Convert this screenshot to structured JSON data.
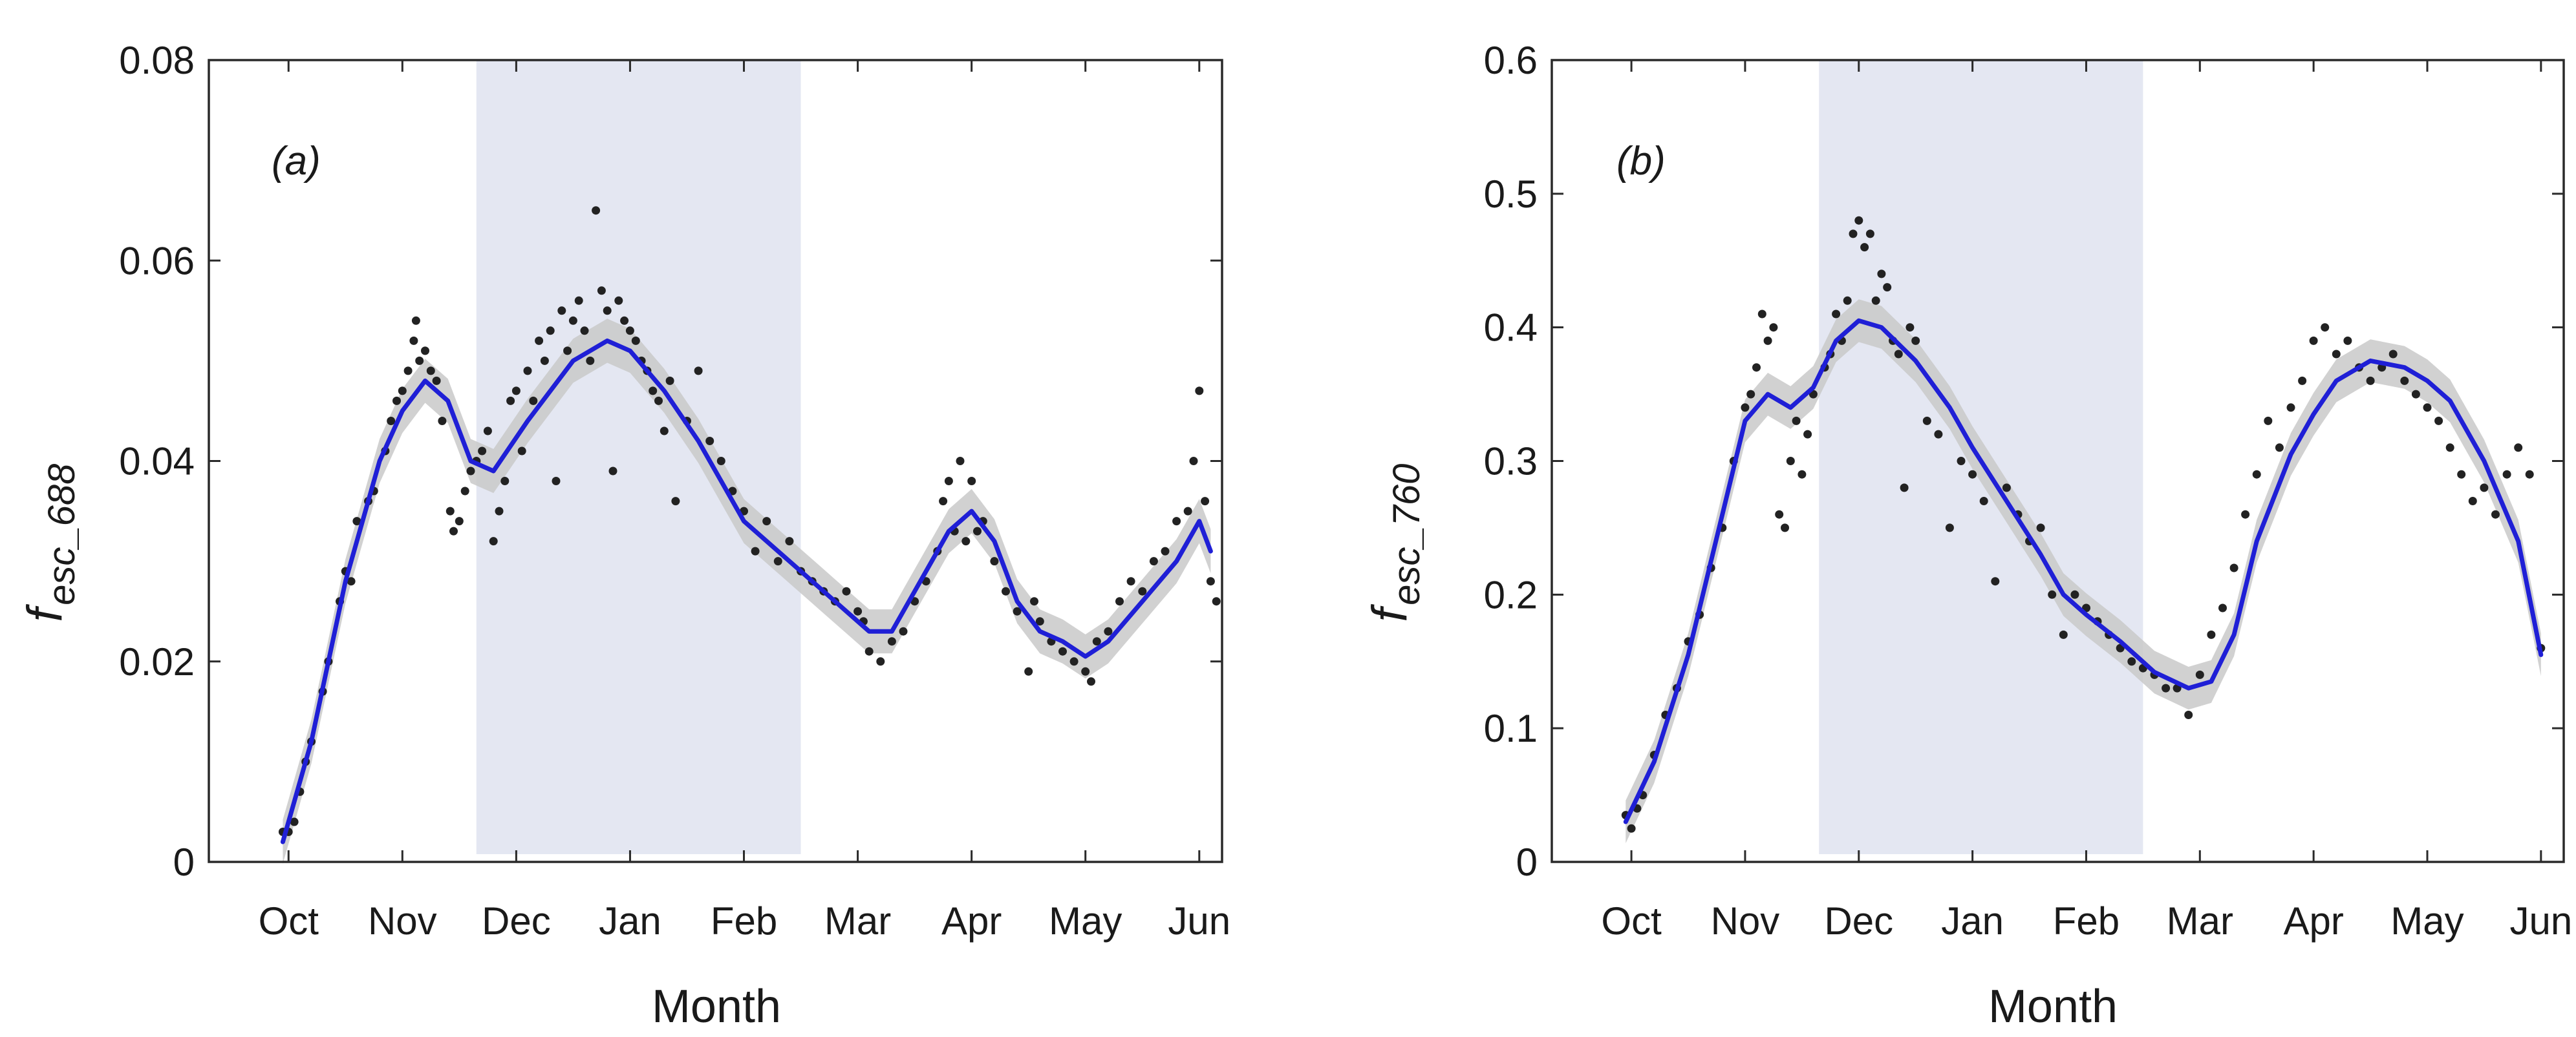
{
  "chart_data": [
    {
      "type": "scatter",
      "panel_label": "(a)",
      "ylabel_main": "f",
      "ylabel_sub": "esc_688",
      "xlabel": "Month",
      "ylim": [
        0,
        0.08
      ],
      "yticks": [
        0,
        0.02,
        0.04,
        0.06,
        0.08
      ],
      "ytick_labels": [
        "0",
        "0.02",
        "0.04",
        "0.06",
        "0.08"
      ],
      "xlim": [
        -0.7,
        8.2
      ],
      "xticks": [
        0,
        1,
        2,
        3,
        4,
        5,
        6,
        7,
        8
      ],
      "xtick_labels": [
        "Oct",
        "Nov",
        "Dec",
        "Jan",
        "Feb",
        "Mar",
        "Apr",
        "May",
        "Jun"
      ],
      "shaded_range": [
        1.65,
        4.5
      ],
      "fit_line": {
        "color": "#1f1fd6",
        "x": [
          -0.05,
          0.2,
          0.5,
          0.8,
          1.0,
          1.2,
          1.4,
          1.6,
          1.8,
          2.1,
          2.5,
          2.8,
          3.0,
          3.3,
          3.6,
          3.8,
          4.0,
          4.3,
          4.6,
          4.9,
          5.1,
          5.3,
          5.5,
          5.8,
          6.0,
          6.2,
          6.4,
          6.6,
          6.8,
          7.0,
          7.2,
          7.5,
          7.8,
          8.0,
          8.1
        ],
        "y": [
          0.002,
          0.012,
          0.028,
          0.04,
          0.045,
          0.048,
          0.046,
          0.04,
          0.039,
          0.044,
          0.05,
          0.052,
          0.051,
          0.047,
          0.042,
          0.038,
          0.034,
          0.031,
          0.028,
          0.025,
          0.023,
          0.023,
          0.027,
          0.033,
          0.035,
          0.032,
          0.026,
          0.023,
          0.022,
          0.0205,
          0.022,
          0.026,
          0.03,
          0.034,
          0.031
        ]
      },
      "band_halfwidth": 0.0022,
      "scatter": {
        "x": [
          -0.05,
          0.0,
          0.05,
          0.1,
          0.15,
          0.2,
          0.3,
          0.35,
          0.45,
          0.5,
          0.55,
          0.6,
          0.7,
          0.75,
          0.85,
          0.9,
          0.95,
          1.0,
          1.05,
          1.1,
          1.12,
          1.15,
          1.2,
          1.25,
          1.3,
          1.35,
          1.42,
          1.45,
          1.5,
          1.55,
          1.6,
          1.65,
          1.7,
          1.75,
          1.8,
          1.85,
          1.9,
          1.95,
          2.0,
          2.05,
          2.1,
          2.15,
          2.2,
          2.25,
          2.3,
          2.35,
          2.4,
          2.45,
          2.5,
          2.55,
          2.6,
          2.65,
          2.7,
          2.75,
          2.8,
          2.85,
          2.9,
          2.95,
          3.0,
          3.05,
          3.1,
          3.15,
          3.2,
          3.25,
          3.3,
          3.35,
          3.4,
          3.5,
          3.6,
          3.7,
          3.8,
          3.9,
          4.0,
          4.1,
          4.2,
          4.3,
          4.4,
          4.5,
          4.6,
          4.7,
          4.8,
          4.9,
          5.0,
          5.05,
          5.1,
          5.2,
          5.3,
          5.4,
          5.5,
          5.6,
          5.7,
          5.75,
          5.8,
          5.85,
          5.9,
          5.95,
          6.0,
          6.05,
          6.1,
          6.2,
          6.3,
          6.4,
          6.5,
          6.55,
          6.6,
          6.7,
          6.8,
          6.9,
          7.0,
          7.05,
          7.1,
          7.2,
          7.3,
          7.4,
          7.5,
          7.6,
          7.7,
          7.8,
          7.9,
          7.95,
          8.0,
          8.05,
          8.1,
          8.15
        ],
        "y": [
          0.003,
          0.003,
          0.004,
          0.007,
          0.01,
          0.012,
          0.017,
          0.02,
          0.026,
          0.029,
          0.028,
          0.034,
          0.036,
          0.037,
          0.041,
          0.044,
          0.046,
          0.047,
          0.049,
          0.052,
          0.054,
          0.05,
          0.051,
          0.049,
          0.048,
          0.044,
          0.035,
          0.033,
          0.034,
          0.037,
          0.039,
          0.04,
          0.041,
          0.043,
          0.032,
          0.035,
          0.038,
          0.046,
          0.047,
          0.041,
          0.049,
          0.046,
          0.052,
          0.05,
          0.053,
          0.038,
          0.055,
          0.051,
          0.054,
          0.056,
          0.053,
          0.05,
          0.065,
          0.057,
          0.055,
          0.039,
          0.056,
          0.054,
          0.053,
          0.052,
          0.05,
          0.049,
          0.047,
          0.046,
          0.043,
          0.048,
          0.036,
          0.044,
          0.049,
          0.042,
          0.04,
          0.037,
          0.035,
          0.031,
          0.034,
          0.03,
          0.032,
          0.029,
          0.028,
          0.027,
          0.026,
          0.027,
          0.025,
          0.024,
          0.021,
          0.02,
          0.022,
          0.023,
          0.026,
          0.028,
          0.031,
          0.036,
          0.038,
          0.033,
          0.04,
          0.032,
          0.038,
          0.033,
          0.034,
          0.03,
          0.027,
          0.025,
          0.019,
          0.026,
          0.024,
          0.022,
          0.021,
          0.02,
          0.019,
          0.018,
          0.022,
          0.023,
          0.026,
          0.028,
          0.027,
          0.03,
          0.031,
          0.034,
          0.035,
          0.04,
          0.047,
          0.036,
          0.028,
          0.026
        ]
      }
    },
    {
      "type": "scatter",
      "panel_label": "(b)",
      "ylabel_main": "f",
      "ylabel_sub": "esc_760",
      "xlabel": "Month",
      "ylim": [
        0,
        0.6
      ],
      "yticks": [
        0,
        0.1,
        0.2,
        0.3,
        0.4,
        0.5,
        0.6
      ],
      "ytick_labels": [
        "0",
        "0.1",
        "0.2",
        "0.3",
        "0.4",
        "0.5",
        "0.6"
      ],
      "xlim": [
        -0.7,
        8.2
      ],
      "xticks": [
        0,
        1,
        2,
        3,
        4,
        5,
        6,
        7,
        8
      ],
      "xtick_labels": [
        "Oct",
        "Nov",
        "Dec",
        "Jan",
        "Feb",
        "Mar",
        "Apr",
        "May",
        "Jun"
      ],
      "shaded_range": [
        1.65,
        4.5
      ],
      "fit_line": {
        "color": "#1f1fd6",
        "x": [
          -0.05,
          0.2,
          0.5,
          0.8,
          1.0,
          1.2,
          1.4,
          1.6,
          1.8,
          2.0,
          2.2,
          2.5,
          2.8,
          3.0,
          3.3,
          3.6,
          3.8,
          4.0,
          4.3,
          4.6,
          4.9,
          5.1,
          5.3,
          5.5,
          5.8,
          6.0,
          6.2,
          6.5,
          6.8,
          7.0,
          7.2,
          7.5,
          7.8,
          8.0
        ],
        "y": [
          0.03,
          0.075,
          0.155,
          0.26,
          0.33,
          0.35,
          0.34,
          0.355,
          0.39,
          0.405,
          0.4,
          0.375,
          0.34,
          0.31,
          0.27,
          0.23,
          0.2,
          0.185,
          0.165,
          0.142,
          0.13,
          0.135,
          0.17,
          0.24,
          0.305,
          0.335,
          0.36,
          0.375,
          0.37,
          0.36,
          0.345,
          0.3,
          0.24,
          0.155
        ]
      },
      "band_halfwidth": 0.016,
      "scatter": {
        "x": [
          -0.05,
          0.0,
          0.05,
          0.1,
          0.2,
          0.3,
          0.4,
          0.5,
          0.6,
          0.7,
          0.8,
          0.9,
          1.0,
          1.05,
          1.1,
          1.15,
          1.2,
          1.25,
          1.3,
          1.35,
          1.4,
          1.45,
          1.5,
          1.55,
          1.6,
          1.7,
          1.75,
          1.8,
          1.85,
          1.9,
          1.95,
          2.0,
          2.05,
          2.1,
          2.15,
          2.2,
          2.25,
          2.3,
          2.35,
          2.4,
          2.45,
          2.5,
          2.6,
          2.7,
          2.8,
          2.9,
          3.0,
          3.1,
          3.2,
          3.3,
          3.4,
          3.5,
          3.6,
          3.7,
          3.8,
          3.9,
          4.0,
          4.1,
          4.2,
          4.3,
          4.4,
          4.5,
          4.6,
          4.7,
          4.8,
          4.9,
          5.0,
          5.1,
          5.2,
          5.3,
          5.4,
          5.5,
          5.6,
          5.7,
          5.8,
          5.9,
          6.0,
          6.1,
          6.2,
          6.3,
          6.4,
          6.5,
          6.6,
          6.7,
          6.8,
          6.9,
          7.0,
          7.1,
          7.2,
          7.3,
          7.4,
          7.5,
          7.6,
          7.7,
          7.8,
          7.9,
          8.0
        ],
        "y": [
          0.035,
          0.025,
          0.04,
          0.05,
          0.08,
          0.11,
          0.13,
          0.165,
          0.185,
          0.22,
          0.25,
          0.3,
          0.34,
          0.35,
          0.37,
          0.41,
          0.39,
          0.4,
          0.26,
          0.25,
          0.3,
          0.33,
          0.29,
          0.32,
          0.35,
          0.37,
          0.38,
          0.41,
          0.39,
          0.42,
          0.47,
          0.48,
          0.46,
          0.47,
          0.42,
          0.44,
          0.43,
          0.39,
          0.38,
          0.28,
          0.4,
          0.39,
          0.33,
          0.32,
          0.25,
          0.3,
          0.29,
          0.27,
          0.21,
          0.28,
          0.26,
          0.24,
          0.25,
          0.2,
          0.17,
          0.2,
          0.19,
          0.18,
          0.17,
          0.16,
          0.15,
          0.145,
          0.14,
          0.13,
          0.13,
          0.11,
          0.14,
          0.17,
          0.19,
          0.22,
          0.26,
          0.29,
          0.33,
          0.31,
          0.34,
          0.36,
          0.39,
          0.4,
          0.38,
          0.39,
          0.37,
          0.36,
          0.37,
          0.38,
          0.36,
          0.35,
          0.34,
          0.33,
          0.31,
          0.29,
          0.27,
          0.28,
          0.26,
          0.29,
          0.31,
          0.29,
          0.16
        ]
      }
    }
  ]
}
